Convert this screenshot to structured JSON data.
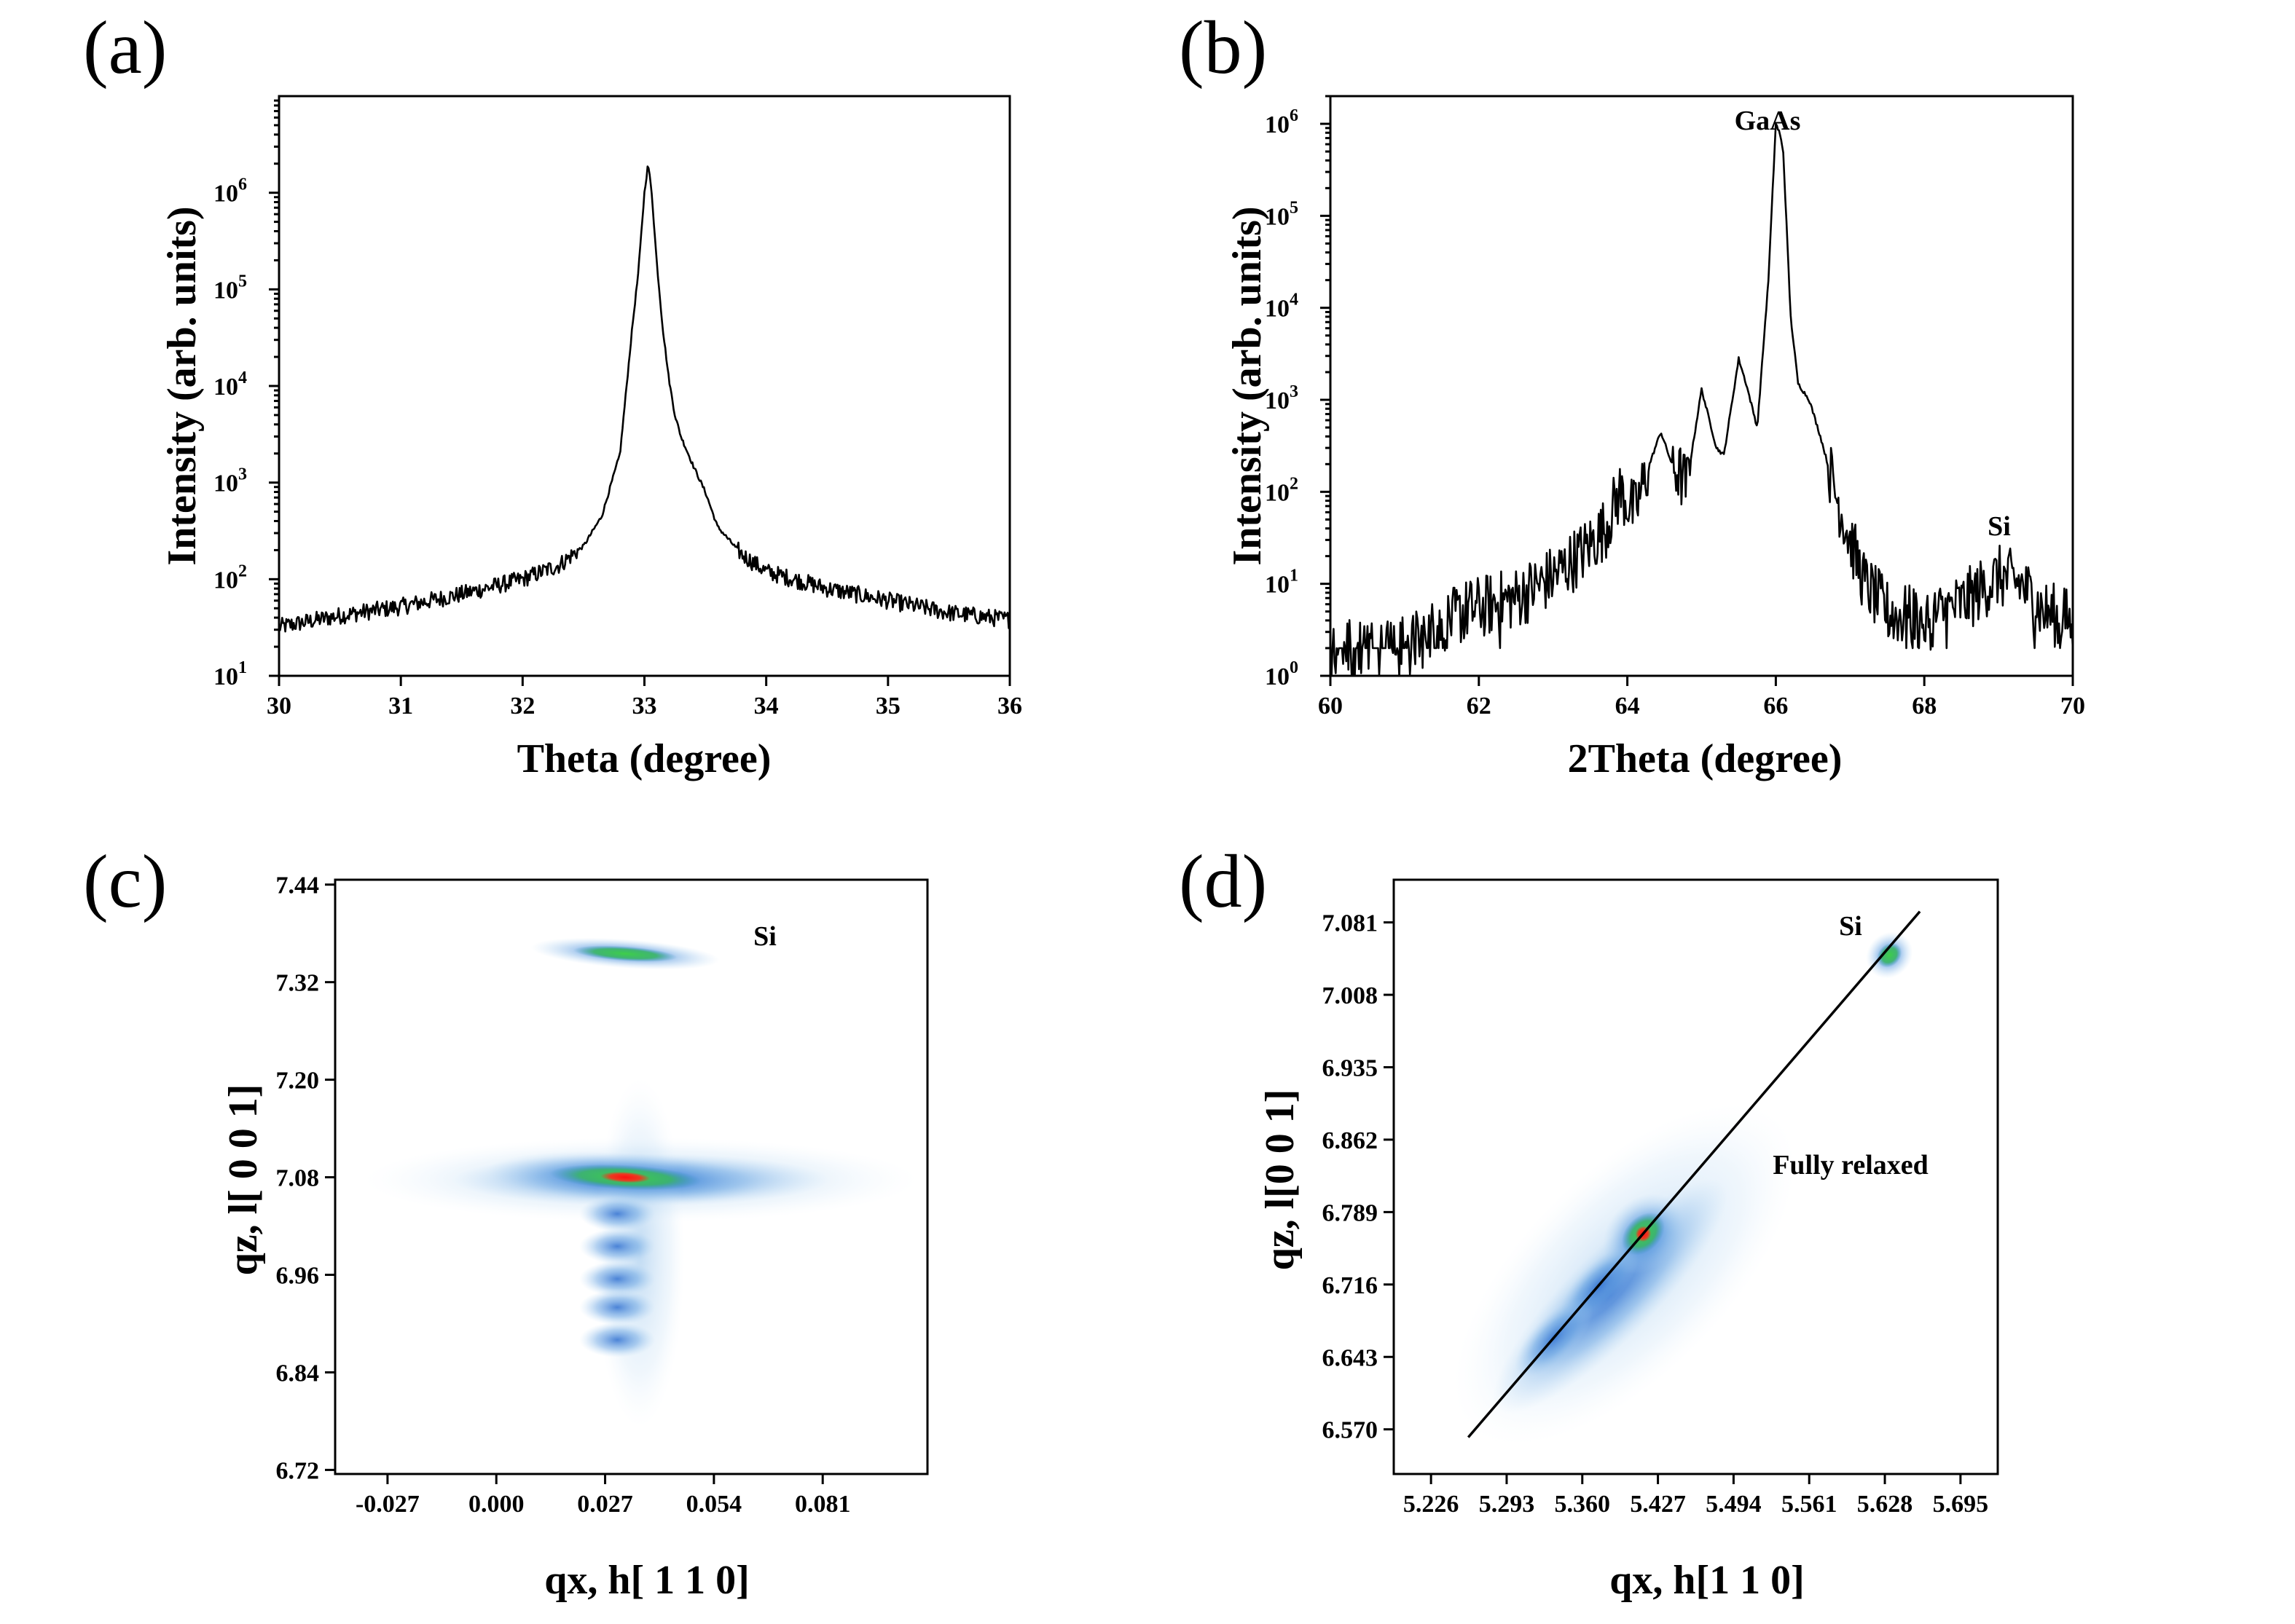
{
  "chart_data": [
    {
      "panel": "(a)",
      "type": "line",
      "xlabel": "Theta (degree)",
      "ylabel": "Intensity (arb. units)",
      "xlim": [
        30,
        36
      ],
      "ylim": [
        10,
        10000000
      ],
      "yscale": "log",
      "x_ticks": [
        30,
        31,
        32,
        33,
        34,
        35,
        36
      ],
      "y_ticks": [
        10,
        100,
        1000,
        10000,
        100000,
        1000000
      ],
      "y_tick_labels": [
        {
          "base": "10",
          "exp": "1"
        },
        {
          "base": "10",
          "exp": "2"
        },
        {
          "base": "10",
          "exp": "3"
        },
        {
          "base": "10",
          "exp": "4"
        },
        {
          "base": "10",
          "exp": "5"
        },
        {
          "base": "10",
          "exp": "6"
        }
      ],
      "grid": false,
      "series": [
        {
          "x": [
            30.0,
            30.5,
            31.0,
            31.5,
            32.0,
            32.3,
            32.5,
            32.65,
            32.8,
            32.9,
            32.95,
            33.0,
            33.03,
            33.06,
            33.1,
            33.15,
            33.2,
            33.25,
            33.3,
            33.4,
            33.5,
            33.6,
            33.8,
            34.0,
            34.5,
            35.0,
            35.5,
            36.0
          ],
          "y": [
            32,
            42,
            52,
            70,
            100,
            140,
            220,
            450,
            2000,
            40000,
            150000,
            1000000,
            2000000,
            1000000,
            200000,
            40000,
            12000,
            5000,
            3000,
            1500,
            800,
            350,
            180,
            120,
            80,
            60,
            45,
            38
          ]
        }
      ]
    },
    {
      "panel": "(b)",
      "type": "line",
      "xlabel": "2Theta (degree)",
      "ylabel": "Intensity (arb. units)",
      "xlim": [
        60,
        70
      ],
      "ylim": [
        1,
        2000000
      ],
      "yscale": "log",
      "x_ticks": [
        60,
        62,
        64,
        66,
        68,
        70
      ],
      "y_ticks": [
        1,
        10,
        100,
        1000,
        10000,
        100000,
        1000000
      ],
      "y_tick_labels": [
        {
          "base": "10",
          "exp": "0"
        },
        {
          "base": "10",
          "exp": "1"
        },
        {
          "base": "10",
          "exp": "2"
        },
        {
          "base": "10",
          "exp": "3"
        },
        {
          "base": "10",
          "exp": "4"
        },
        {
          "base": "10",
          "exp": "5"
        },
        {
          "base": "10",
          "exp": "6"
        }
      ],
      "grid": false,
      "annotations": [
        {
          "text": "GaAs",
          "x": 66.0,
          "y": 1800000
        },
        {
          "text": "Si",
          "x": 69.1,
          "y": 150
        }
      ],
      "series": [
        {
          "x": [
            60.0,
            61.0,
            61.8,
            62.5,
            63.0,
            63.4,
            63.7,
            63.9,
            64.1,
            64.3,
            64.45,
            64.6,
            64.8,
            65.0,
            65.2,
            65.3,
            65.5,
            65.6,
            65.75,
            65.9,
            66.0,
            66.05,
            66.1,
            66.2,
            66.3,
            66.45,
            66.6,
            66.8,
            67.0,
            67.2,
            67.5,
            68.0,
            68.5,
            69.0,
            69.3,
            69.6,
            70.0
          ],
          "y": [
            2,
            2,
            5,
            7,
            12,
            22,
            40,
            100,
            60,
            200,
            450,
            200,
            120,
            1300,
            300,
            250,
            2800,
            1500,
            500,
            20000,
            1000000,
            800000,
            500000,
            8000,
            1500,
            1000,
            400,
            100,
            30,
            10,
            5,
            4,
            6,
            12,
            10,
            5,
            4
          ]
        }
      ]
    },
    {
      "panel": "(c)",
      "type": "heatmap",
      "xlabel": "qx, h[ 1 1 0]",
      "ylabel": "qz, l[ 0 0 1]",
      "xlim": [
        -0.04,
        0.107
      ],
      "ylim": [
        6.715,
        7.446
      ],
      "x_ticks": [
        -0.027,
        0.0,
        0.027,
        0.054,
        0.081
      ],
      "x_tick_labels": [
        "-0.027",
        "0.000",
        "0.027",
        "0.054",
        "0.081"
      ],
      "y_ticks": [
        6.72,
        6.84,
        6.96,
        7.08,
        7.2,
        7.32,
        7.44
      ],
      "y_tick_labels": [
        "6.72",
        "6.84",
        "6.96",
        "7.08",
        "7.20",
        "7.32",
        "7.44"
      ],
      "annotations": [
        {
          "text": "Si",
          "x": 0.061,
          "y": 7.37
        }
      ],
      "features": [
        {
          "x": 0.032,
          "y": 7.08,
          "intensity": 1.0
        },
        {
          "x": 0.03,
          "y": 7.035,
          "intensity": 0.55
        },
        {
          "x": 0.03,
          "y": 6.995,
          "intensity": 0.45
        },
        {
          "x": 0.03,
          "y": 6.955,
          "intensity": 0.45
        },
        {
          "x": 0.03,
          "y": 6.92,
          "intensity": 0.35
        },
        {
          "x": 0.03,
          "y": 6.88,
          "intensity": 0.3
        },
        {
          "x": 0.032,
          "y": 7.355,
          "intensity": 0.75
        }
      ]
    },
    {
      "panel": "(d)",
      "type": "heatmap",
      "xlabel": "qx, h[1 1 0]",
      "ylabel": "qz, l[0 0 1]",
      "xlim": [
        5.193,
        5.728
      ],
      "ylim": [
        6.525,
        7.124
      ],
      "x_ticks": [
        5.226,
        5.293,
        5.36,
        5.427,
        5.494,
        5.561,
        5.628,
        5.695
      ],
      "x_tick_labels": [
        "5.226",
        "5.293",
        "5.360",
        "5.427",
        "5.494",
        "5.561",
        "5.628",
        "5.695"
      ],
      "y_ticks": [
        6.57,
        6.643,
        6.716,
        6.789,
        6.862,
        6.935,
        7.008,
        7.081
      ],
      "y_tick_labels": [
        "6.570",
        "6.643",
        "6.716",
        "6.789",
        "6.862",
        "6.935",
        "7.008",
        "7.081"
      ],
      "annotations": [
        {
          "text": "Si",
          "x": 5.596,
          "y": 7.09
        },
        {
          "text": "Fully relaxed",
          "x": 5.543,
          "y": 6.84
        }
      ],
      "reference_line": {
        "label": "Fully relaxed",
        "x": [
          5.259,
          5.659
        ],
        "y": [
          6.562,
          7.092
        ]
      },
      "features": [
        {
          "x": 5.414,
          "y": 6.767,
          "intensity": 1.0
        },
        {
          "x": 5.375,
          "y": 6.715,
          "intensity": 0.55
        },
        {
          "x": 5.335,
          "y": 6.662,
          "intensity": 0.45
        },
        {
          "x": 5.632,
          "y": 7.048,
          "intensity": 0.8
        }
      ]
    }
  ]
}
